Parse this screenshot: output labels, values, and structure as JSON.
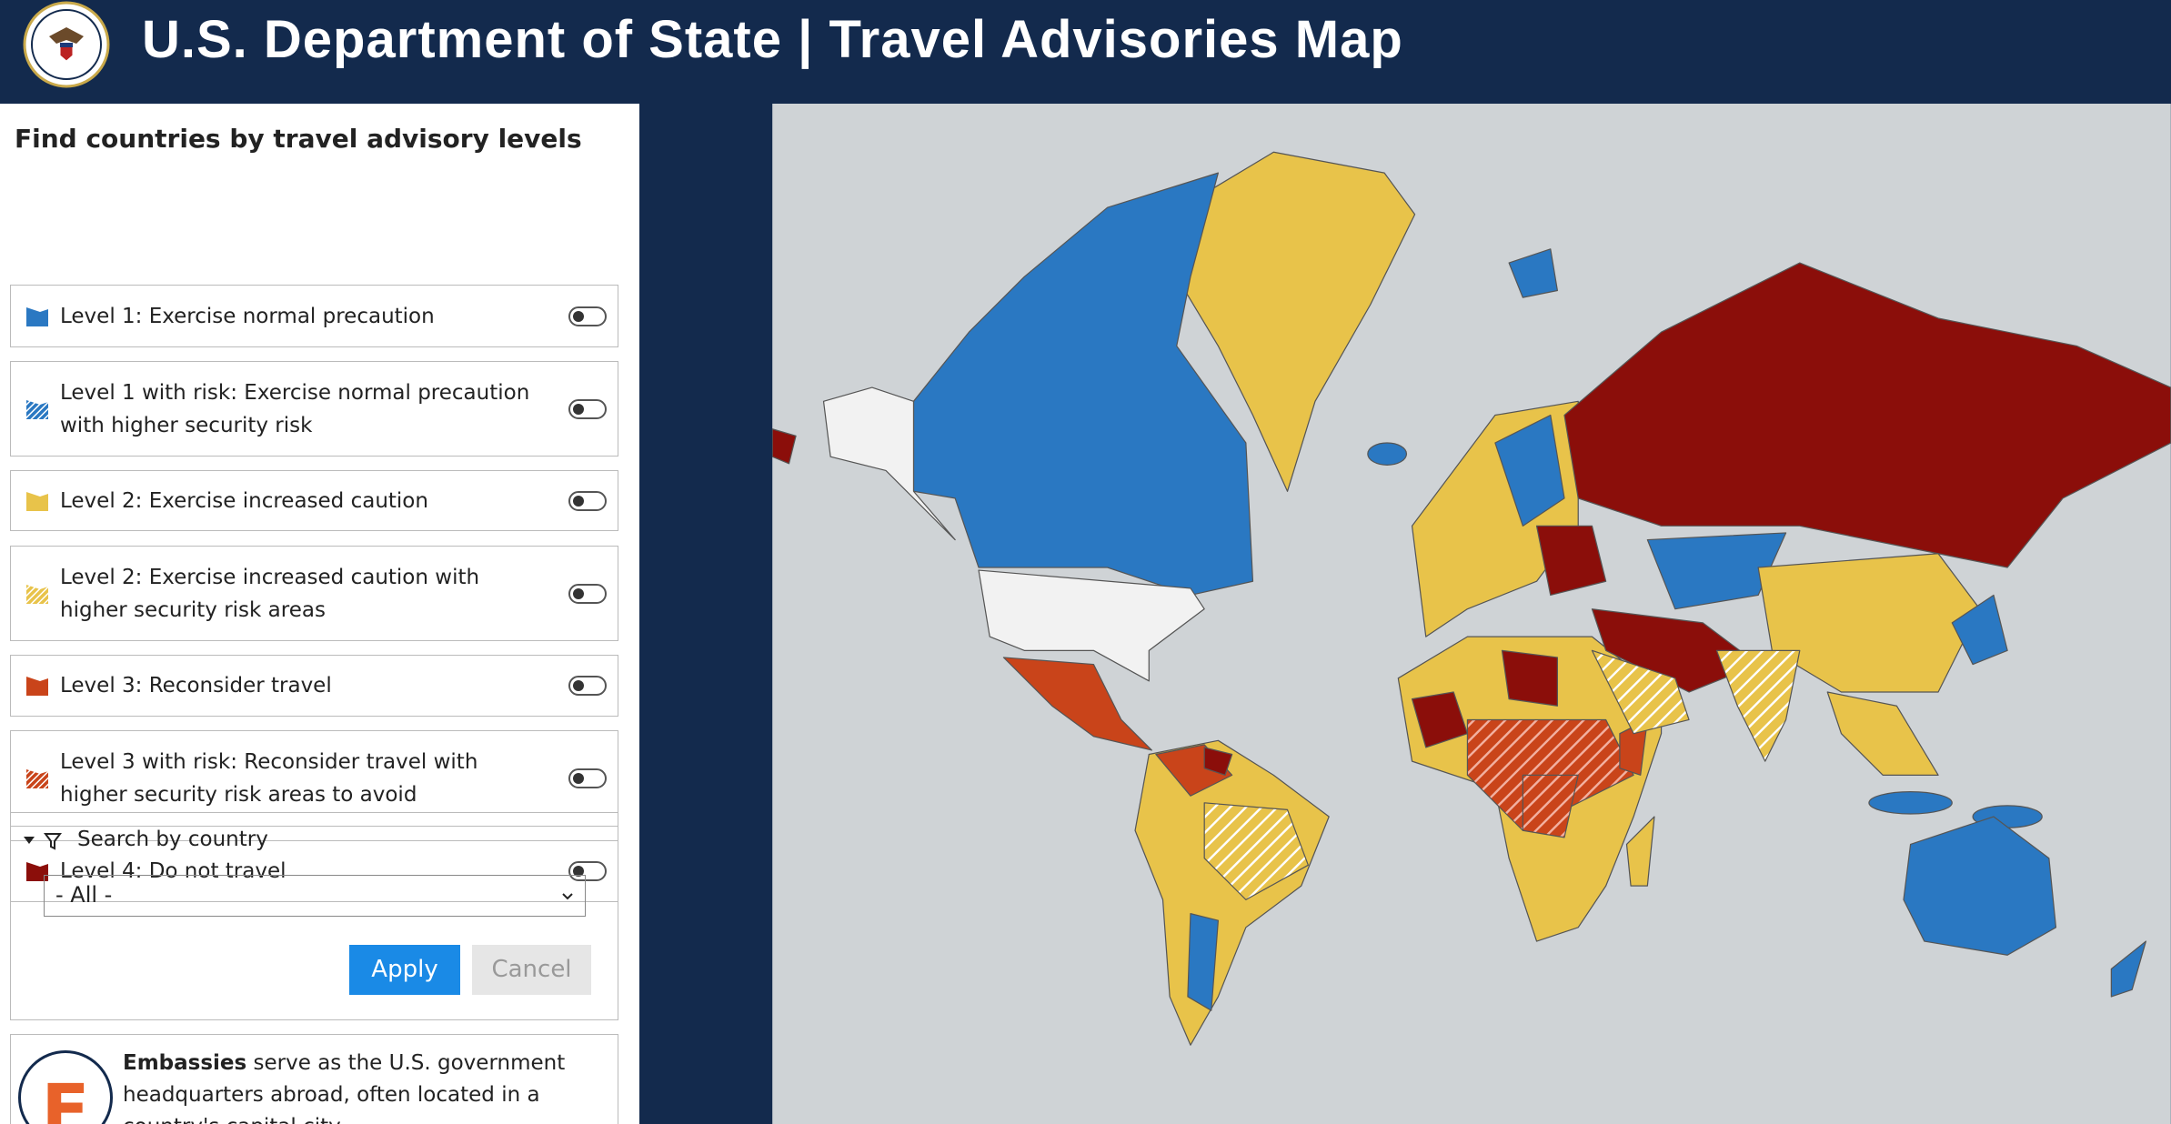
{
  "header": {
    "title": "U.S. Department of State | Travel Advisories Map"
  },
  "panel": {
    "heading": "Find countries by travel advisory levels",
    "levels": [
      {
        "label": "Level 1: Exercise normal precaution"
      },
      {
        "label": "Level 1 with risk: Exercise normal precaution with higher security risk"
      },
      {
        "label": "Level 2: Exercise increased caution"
      },
      {
        "label": "Level 2: Exercise increased caution with higher security risk areas"
      },
      {
        "label": "Level 3: Reconsider travel"
      },
      {
        "label": "Level 3 with risk: Reconsider travel with higher security risk areas to avoid"
      },
      {
        "label": "Level 4: Do not travel"
      }
    ],
    "search": {
      "label": "Search by country",
      "select": "- All -",
      "apply": "Apply",
      "cancel": "Cancel"
    },
    "embassies": {
      "icon": "E",
      "term": "Embassies",
      "text": "serve as the U.S. government headquarters abroad, often located in a country's capital city"
    }
  }
}
